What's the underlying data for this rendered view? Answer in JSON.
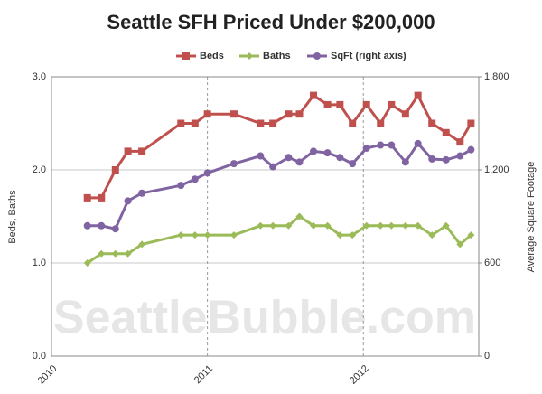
{
  "chart_data": {
    "type": "line",
    "title": "Seattle SFH Priced Under $200,000",
    "watermark": "SeattleBubble.com",
    "y_label": "Beds, Baths",
    "y2_label": "Average Square Footage",
    "x": [
      2010.23,
      2010.32,
      2010.41,
      2010.49,
      2010.58,
      2010.83,
      2010.92,
      2011.0,
      2011.17,
      2011.34,
      2011.42,
      2011.52,
      2011.59,
      2011.68,
      2011.77,
      2011.85,
      2011.93,
      2012.02,
      2012.11,
      2012.18,
      2012.27,
      2012.35,
      2012.44,
      2012.53,
      2012.62,
      2012.69
    ],
    "series": [
      {
        "name": "Beds",
        "color": "#c0504d",
        "marker": "square",
        "values": [
          1.7,
          1.7,
          2.0,
          2.2,
          2.2,
          2.5,
          2.5,
          2.6,
          2.6,
          2.5,
          2.5,
          2.6,
          2.6,
          2.8,
          2.7,
          2.7,
          2.5,
          2.7,
          2.5,
          2.7,
          2.6,
          2.8,
          2.5,
          2.4,
          2.3,
          2.5
        ]
      },
      {
        "name": "Baths",
        "color": "#9bbb59",
        "marker": "diamond",
        "values": [
          1.0,
          1.1,
          1.1,
          1.1,
          1.2,
          1.3,
          1.3,
          1.3,
          1.3,
          1.4,
          1.4,
          1.4,
          1.5,
          1.4,
          1.4,
          1.3,
          1.3,
          1.4,
          1.4,
          1.4,
          1.4,
          1.4,
          1.3,
          1.4,
          1.2,
          1.3
        ]
      },
      {
        "name": "SqFt (right axis)",
        "color": "#8064a2",
        "marker": "circle",
        "axis": "y2",
        "values": [
          840,
          840,
          820,
          1000,
          1050,
          1100,
          1140,
          1180,
          1240,
          1290,
          1220,
          1280,
          1250,
          1320,
          1310,
          1280,
          1240,
          1340,
          1360,
          1360,
          1250,
          1370,
          1270,
          1265,
          1290,
          1330
        ]
      }
    ],
    "xlim": [
      2010,
      2012.74
    ],
    "xticks": [
      2010,
      2011,
      2012
    ],
    "ylim": [
      0,
      3
    ],
    "yticks": [
      {
        "value": 0,
        "label": "0.0"
      },
      {
        "value": 1,
        "label": "1.0"
      },
      {
        "value": 2,
        "label": "2.0"
      },
      {
        "value": 3,
        "label": "3.0"
      }
    ],
    "y2lim": [
      0,
      1800
    ],
    "y2ticks": [
      0,
      600,
      {
        "value": 1200,
        "label": "1,200"
      },
      {
        "value": 1800,
        "label": "1,800"
      }
    ],
    "grid": true,
    "legend": "top"
  }
}
